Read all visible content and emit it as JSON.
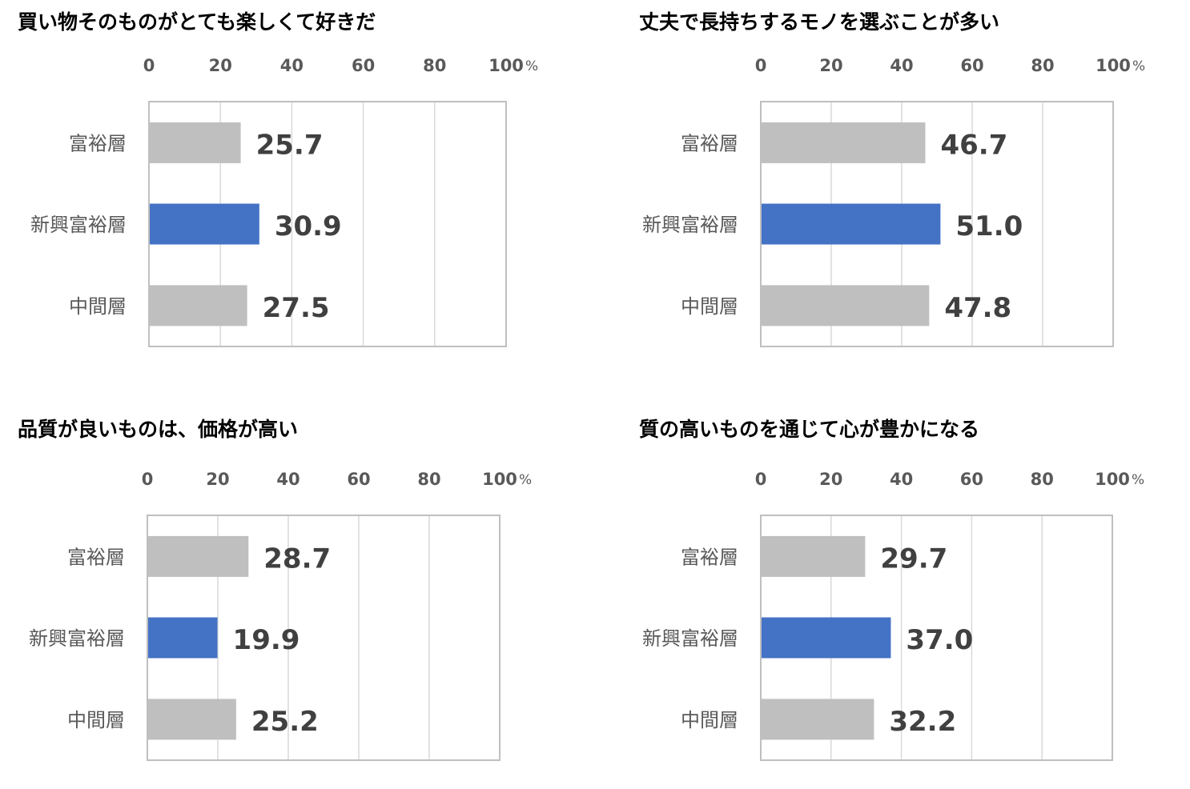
{
  "colors": {
    "highlight": "#4472C4",
    "default": "#BFBFBF",
    "grid": "#D9D9D9",
    "frame": "#BFBFBF",
    "label": "#595959",
    "value": "#404040"
  },
  "chart_data": [
    {
      "type": "bar",
      "orientation": "horizontal",
      "title": "買い物そのものがとても楽しくて好きだ",
      "unit": "%",
      "categories": [
        "富裕層",
        "新興富裕層",
        "中間層"
      ],
      "values": [
        25.7,
        30.9,
        27.5
      ],
      "value_labels": [
        "25.7",
        "30.9",
        "27.5"
      ],
      "highlight_index": 1,
      "xlim": [
        0,
        100
      ],
      "ticks": [
        "0",
        "20",
        "40",
        "60",
        "80",
        "100"
      ],
      "tick_values": [
        0,
        20,
        40,
        60,
        80,
        100
      ],
      "grid": true,
      "axis_position": "top"
    },
    {
      "type": "bar",
      "orientation": "horizontal",
      "title": "丈夫で長持ちするモノを選ぶことが多い",
      "unit": "%",
      "categories": [
        "富裕層",
        "新興富裕層",
        "中間層"
      ],
      "values": [
        46.7,
        51.0,
        47.8
      ],
      "value_labels": [
        "46.7",
        "51.0",
        "47.8"
      ],
      "highlight_index": 1,
      "xlim": [
        0,
        100
      ],
      "ticks": [
        "0",
        "20",
        "40",
        "60",
        "80",
        "100"
      ],
      "tick_values": [
        0,
        20,
        40,
        60,
        80,
        100
      ],
      "grid": true,
      "axis_position": "top"
    },
    {
      "type": "bar",
      "orientation": "horizontal",
      "title": "品質が良いものは、価格が高い",
      "unit": "%",
      "categories": [
        "富裕層",
        "新興富裕層",
        "中間層"
      ],
      "values": [
        28.7,
        19.9,
        25.2
      ],
      "value_labels": [
        "28.7",
        "19.9",
        "25.2"
      ],
      "highlight_index": 1,
      "xlim": [
        0,
        100
      ],
      "ticks": [
        "0",
        "20",
        "40",
        "60",
        "80",
        "100"
      ],
      "tick_values": [
        0,
        20,
        40,
        60,
        80,
        100
      ],
      "grid": true,
      "axis_position": "top"
    },
    {
      "type": "bar",
      "orientation": "horizontal",
      "title": "質の高いものを通じて心が豊かになる",
      "unit": "%",
      "categories": [
        "富裕層",
        "新興富裕層",
        "中間層"
      ],
      "values": [
        29.7,
        37.0,
        32.2
      ],
      "value_labels": [
        "29.7",
        "37.0",
        "32.2"
      ],
      "highlight_index": 1,
      "xlim": [
        0,
        100
      ],
      "ticks": [
        "0",
        "20",
        "40",
        "60",
        "80",
        "100"
      ],
      "tick_values": [
        0,
        20,
        40,
        60,
        80,
        100
      ],
      "grid": true,
      "axis_position": "top"
    }
  ]
}
